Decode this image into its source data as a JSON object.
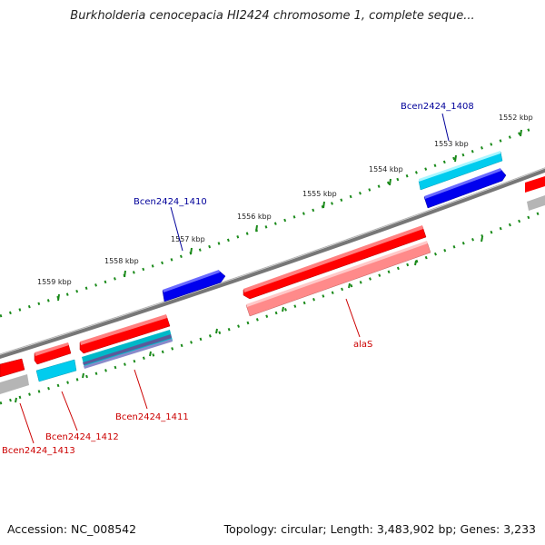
{
  "title": "Burkholderia cenocepacia HI2424 chromosome 1, complete seque...",
  "footer": {
    "accession": "Accession: NC_008542",
    "summary": "Topology: circular; Length: 3,483,902 bp; Genes: 3,233"
  },
  "colors": {
    "background": "#ffffff",
    "backbone": "#8a8a8a",
    "tick": "#1a8a1a",
    "forward_gene": "#ff0000",
    "forward_cds": "#ff8a8a",
    "reverse_gene": "#0000ee",
    "reverse_cds": "#00ccee",
    "other": "#b5b5b5",
    "label_forward": "#cc0000",
    "label_reverse": "#00009a"
  },
  "scale_labels": [
    "1552 kbp",
    "1553 kbp",
    "1554 kbp",
    "1555 kbp",
    "1556 kbp",
    "1557 kbp",
    "1558 kbp",
    "1559 kbp"
  ],
  "gene_labels": {
    "bcen1408": "Bcen2424_1408",
    "bcen1410": "Bcen2424_1410",
    "alas": "alaS",
    "bcen1411": "Bcen2424_1411",
    "bcen1412": "Bcen2424_1412",
    "bcen1413": "Bcen2424_1413"
  }
}
